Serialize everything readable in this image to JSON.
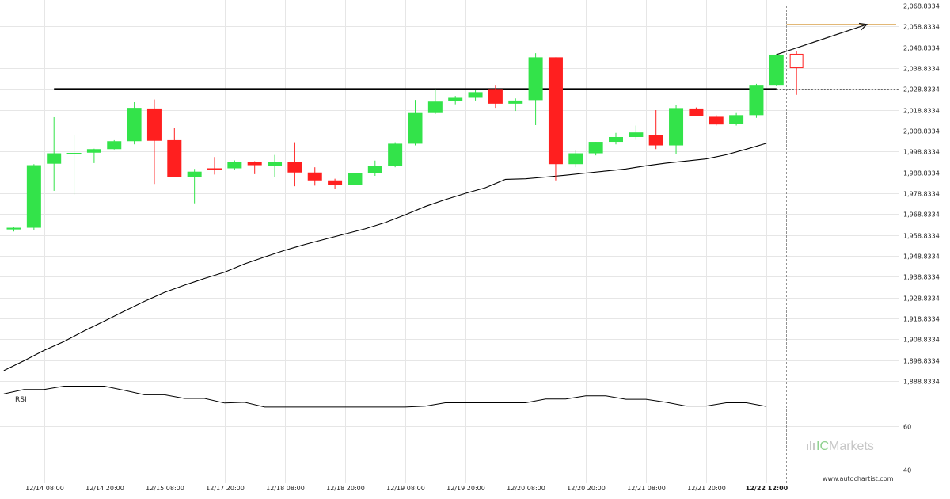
{
  "chart_data": {
    "type": "candlestick",
    "title": "",
    "y_axis": {
      "position": "right",
      "ticks": [
        "2,068.8334",
        "2,058.8334",
        "2,048.8334",
        "2,038.8334",
        "2,028.8334",
        "2,018.8334",
        "2,008.8334",
        "1,998.8334",
        "1,988.8334",
        "1,978.8334",
        "1,968.8334",
        "1,958.8334",
        "1,948.8334",
        "1,938.8334",
        "1,928.8334",
        "1,918.8334",
        "1,908.8334",
        "1,898.8334",
        "1,888.8334"
      ],
      "range": [
        1888.8334,
        2068.8334
      ]
    },
    "x_axis": {
      "ticks": [
        {
          "label": "12/14 08:00",
          "index": 1.5
        },
        {
          "label": "12/14 20:00",
          "index": 4.5
        },
        {
          "label": "12/15 08:00",
          "index": 7.5
        },
        {
          "label": "12/17 20:00",
          "index": 10.5
        },
        {
          "label": "12/18 08:00",
          "index": 13.5
        },
        {
          "label": "12/18 20:00",
          "index": 16.5
        },
        {
          "label": "12/19 08:00",
          "index": 19.5
        },
        {
          "label": "12/19 20:00",
          "index": 22.5
        },
        {
          "label": "12/20 08:00",
          "index": 25.5
        },
        {
          "label": "12/20 20:00",
          "index": 28.5
        },
        {
          "label": "12/21 08:00",
          "index": 31.5
        },
        {
          "label": "12/21 20:00",
          "index": 34.5
        },
        {
          "label": "12/22 12:00",
          "index": 37.5,
          "bold": true
        }
      ]
    },
    "candles": [
      {
        "o": 1961.5,
        "h": 1962.5,
        "l": 1960.5,
        "c": 1962.3
      },
      {
        "o": 1962.3,
        "h": 1992.8,
        "l": 1961.0,
        "c": 1992.3
      },
      {
        "o": 1993.0,
        "h": 2015.3,
        "l": 1980.0,
        "c": 1998.0
      },
      {
        "o": 1998.0,
        "h": 2006.8,
        "l": 1978.2,
        "c": 1998.2
      },
      {
        "o": 1998.3,
        "h": 2000.2,
        "l": 1993.3,
        "c": 2000.0
      },
      {
        "o": 2000.0,
        "h": 2004.3,
        "l": 1999.8,
        "c": 2003.8
      },
      {
        "o": 2003.8,
        "h": 2022.5,
        "l": 2002.3,
        "c": 2019.8
      },
      {
        "o": 2019.5,
        "h": 2023.8,
        "l": 1983.3,
        "c": 2004.0
      },
      {
        "o": 2004.3,
        "h": 2010.0,
        "l": 1986.8,
        "c": 1986.8
      },
      {
        "o": 1986.8,
        "h": 1990.5,
        "l": 1974.0,
        "c": 1989.2
      },
      {
        "o": 1990.8,
        "h": 1996.2,
        "l": 1987.8,
        "c": 1990.3
      },
      {
        "o": 1990.8,
        "h": 1994.6,
        "l": 1990.0,
        "c": 1993.8
      },
      {
        "o": 1993.8,
        "h": 1994.2,
        "l": 1988.0,
        "c": 1992.3
      },
      {
        "o": 1992.0,
        "h": 1997.2,
        "l": 1986.8,
        "c": 1993.8
      },
      {
        "o": 1994.0,
        "h": 2003.3,
        "l": 1982.2,
        "c": 1988.8
      },
      {
        "o": 1988.8,
        "h": 1991.3,
        "l": 1982.5,
        "c": 1985.0
      },
      {
        "o": 1985.0,
        "h": 1985.8,
        "l": 1980.8,
        "c": 1982.8
      },
      {
        "o": 1983.0,
        "h": 1988.6,
        "l": 1982.8,
        "c": 1988.6
      },
      {
        "o": 1988.6,
        "h": 1994.5,
        "l": 1987.2,
        "c": 1991.8
      },
      {
        "o": 1991.8,
        "h": 2003.3,
        "l": 1991.3,
        "c": 2002.6
      },
      {
        "o": 2002.6,
        "h": 2023.6,
        "l": 2001.8,
        "c": 2017.3
      },
      {
        "o": 2017.3,
        "h": 2028.8,
        "l": 2016.8,
        "c": 2022.8
      },
      {
        "o": 2023.0,
        "h": 2025.5,
        "l": 2021.5,
        "c": 2024.6
      },
      {
        "o": 2024.6,
        "h": 2028.3,
        "l": 2023.3,
        "c": 2027.3
      },
      {
        "o": 2028.8,
        "h": 2030.8,
        "l": 2019.8,
        "c": 2021.8
      },
      {
        "o": 2021.8,
        "h": 2024.3,
        "l": 2018.3,
        "c": 2023.3
      },
      {
        "o": 2023.5,
        "h": 2046.0,
        "l": 2011.5,
        "c": 2044.0
      },
      {
        "o": 2044.0,
        "h": 2044.0,
        "l": 1985.0,
        "c": 1992.8
      },
      {
        "o": 1992.8,
        "h": 1999.3,
        "l": 1991.3,
        "c": 1998.0
      },
      {
        "o": 1998.0,
        "h": 2003.5,
        "l": 1997.0,
        "c": 2003.5
      },
      {
        "o": 2003.5,
        "h": 2007.8,
        "l": 2002.3,
        "c": 2005.8
      },
      {
        "o": 2005.8,
        "h": 2011.3,
        "l": 2004.5,
        "c": 2008.0
      },
      {
        "o": 2006.8,
        "h": 2018.7,
        "l": 2000.0,
        "c": 2001.8
      },
      {
        "o": 2001.8,
        "h": 2021.3,
        "l": 1997.5,
        "c": 2019.7
      },
      {
        "o": 2019.5,
        "h": 2020.0,
        "l": 2015.8,
        "c": 2015.8
      },
      {
        "o": 2015.5,
        "h": 2016.3,
        "l": 2011.3,
        "c": 2011.8
      },
      {
        "o": 2012.0,
        "h": 2017.3,
        "l": 2011.3,
        "c": 2016.3
      },
      {
        "o": 2016.3,
        "h": 2031.3,
        "l": 2015.0,
        "c": 2030.8
      },
      {
        "o": 2030.8,
        "h": 2045.7,
        "l": 2030.5,
        "c": 2045.3
      },
      {
        "o": 2045.5,
        "h": 2047.0,
        "l": 2026.0,
        "c": 2039.0,
        "hollow": true
      }
    ],
    "moving_average": [
      1893.8,
      1898.5,
      1903.5,
      1907.8,
      1912.8,
      1917.5,
      1922.3,
      1927.0,
      1931.3,
      1934.8,
      1938.0,
      1941.0,
      1945.0,
      1948.3,
      1951.5,
      1954.3,
      1956.8,
      1959.3,
      1961.8,
      1964.8,
      1968.5,
      1972.5,
      1975.8,
      1978.8,
      1981.5,
      1985.5,
      1985.8,
      1986.6,
      1987.5,
      1988.5,
      1989.5,
      1990.5,
      1992.0,
      1993.3,
      1994.3,
      1995.3,
      1997.3,
      2000.0,
      2002.8
    ],
    "resistance_level": 2028.8,
    "projection": {
      "from_index": 38,
      "from_value": 2045.3,
      "to_index": 42.5,
      "to_value": 2059.8
    },
    "target_level": 2059.8,
    "current_time_index": 38,
    "rsi": {
      "label": "RSI",
      "ticks": [
        "60",
        "40"
      ],
      "range": [
        33.6,
        84.9
      ],
      "values": [
        74.9,
        76.9,
        76.9,
        78.5,
        78.5,
        78.5,
        76.6,
        74.5,
        74.5,
        72.8,
        72.8,
        70.7,
        71.0,
        68.8,
        68.8,
        68.8,
        68.8,
        68.8,
        68.8,
        68.8,
        68.8,
        69.2,
        70.8,
        70.8,
        70.8,
        70.8,
        70.8,
        72.5,
        72.5,
        74.0,
        74.0,
        72.4,
        72.4,
        71.0,
        69.3,
        69.3,
        70.8,
        70.8,
        69.1
      ]
    },
    "colors": {
      "bull": "#33e34a",
      "bear": "#ff1f1f",
      "line": "#000000",
      "projection": "#111111",
      "target": "#d9a04a",
      "hollow": "#ff1f1f"
    },
    "grid": true
  },
  "branding": {
    "logo_ic": "IC",
    "logo_markets": "Markets",
    "website": "www.autochartist.com"
  }
}
